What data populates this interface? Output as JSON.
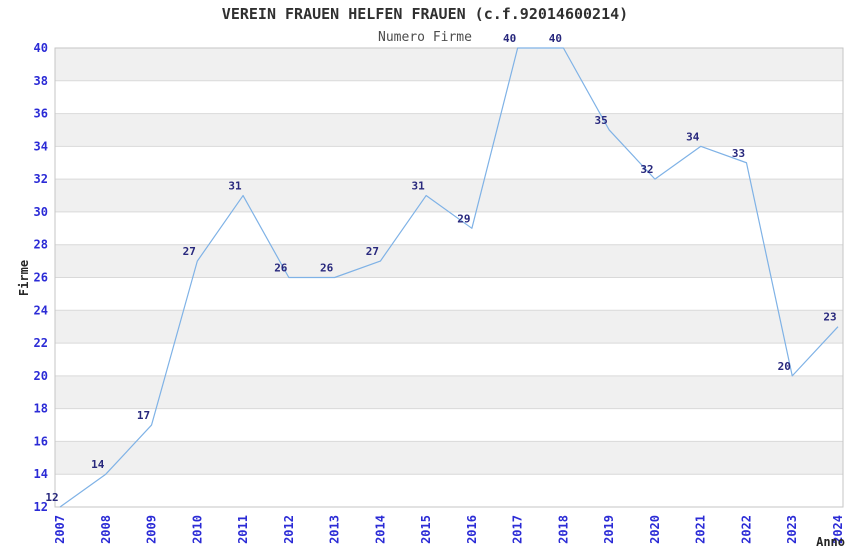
{
  "chart_data": {
    "type": "line",
    "title": "VEREIN FRAUEN HELFEN FRAUEN (c.f.92014600214)",
    "subtitle": "Numero Firme",
    "xlabel": "Anno",
    "ylabel": "Firme",
    "x": [
      "2007",
      "2008",
      "2009",
      "2010",
      "2011",
      "2012",
      "2013",
      "2014",
      "2015",
      "2016",
      "2017",
      "2018",
      "2019",
      "2020",
      "2021",
      "2022",
      "2023",
      "2024"
    ],
    "values": [
      12,
      14,
      17,
      27,
      31,
      26,
      26,
      27,
      31,
      29,
      40,
      40,
      35,
      32,
      34,
      33,
      20,
      23
    ],
    "ylim": [
      12,
      40
    ],
    "ytick_step": 2,
    "yticks": [
      12,
      14,
      16,
      18,
      20,
      22,
      24,
      26,
      28,
      30,
      32,
      34,
      36,
      38,
      40
    ],
    "grid": "horizontal",
    "stripe_bands": true,
    "legend": "none",
    "point_labels": true
  },
  "colors": {
    "line": "#7fb2e6",
    "tick_label": "#2b2bd6",
    "data_label": "#28287d",
    "band_fill": "#f0f0f0",
    "gridline": "#d9d9d9",
    "plot_border": "#c6c6c6",
    "title": "#303030",
    "subtitle": "#4d4d4d",
    "axis_title": "#262626",
    "background": "#ffffff"
  }
}
